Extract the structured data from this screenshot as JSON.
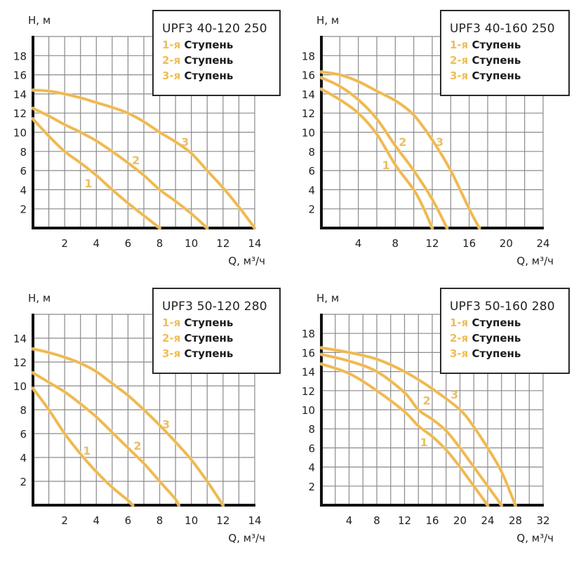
{
  "page": {
    "title": "UPF3 pump performance curves"
  },
  "style": {
    "curve_color": "#eeb64a",
    "curve_label_color": "#e9bf66",
    "grid_color": "#8a8a8a",
    "axis_color": "#111111",
    "legend_number_color": "#f0bd58"
  },
  "chart_data": [
    {
      "type": "line",
      "title": "UPF3 40-120 250",
      "xlabel": "Q, м³/ч",
      "ylabel": "H, м",
      "xlim": [
        0,
        14
      ],
      "ylim": [
        0,
        20
      ],
      "x_grid_step": 1,
      "y_grid_step": 2,
      "x_ticks": [
        2,
        4,
        6,
        8,
        10,
        12,
        14
      ],
      "y_ticks": [
        2,
        4,
        6,
        8,
        10,
        12,
        14,
        16,
        18
      ],
      "grid": true,
      "legend": {
        "position": "top-right",
        "entries": [
          {
            "num": "1-я",
            "label": "Ступень"
          },
          {
            "num": "2-я",
            "label": "Ступень"
          },
          {
            "num": "3-я",
            "label": "Ступень"
          }
        ]
      },
      "series": [
        {
          "name": "1",
          "label_at": [
            3.5,
            4.7
          ],
          "points": [
            [
              0,
              11.4
            ],
            [
              1,
              9.6
            ],
            [
              2,
              8.0
            ],
            [
              3,
              6.8
            ],
            [
              4,
              5.5
            ],
            [
              5,
              4.0
            ],
            [
              6,
              2.6
            ],
            [
              7,
              1.3
            ],
            [
              8,
              0
            ]
          ]
        },
        {
          "name": "2",
          "label_at": [
            6.5,
            7.1
          ],
          "points": [
            [
              0,
              12.5
            ],
            [
              1,
              11.7
            ],
            [
              2,
              10.8
            ],
            [
              3,
              10.0
            ],
            [
              4,
              9.1
            ],
            [
              5,
              8.0
            ],
            [
              6,
              6.8
            ],
            [
              7,
              5.5
            ],
            [
              8,
              4.0
            ],
            [
              9,
              2.8
            ],
            [
              10,
              1.5
            ],
            [
              11,
              0
            ]
          ]
        },
        {
          "name": "3",
          "label_at": [
            9.6,
            9.0
          ],
          "points": [
            [
              0,
              14.4
            ],
            [
              1,
              14.3
            ],
            [
              2,
              14.0
            ],
            [
              3,
              13.6
            ],
            [
              4,
              13.1
            ],
            [
              5,
              12.6
            ],
            [
              6,
              12.0
            ],
            [
              7,
              11.1
            ],
            [
              8,
              10.0
            ],
            [
              9,
              9.0
            ],
            [
              10,
              7.8
            ],
            [
              11,
              6.0
            ],
            [
              12,
              4.2
            ],
            [
              13,
              2.2
            ],
            [
              14,
              0
            ]
          ]
        }
      ]
    },
    {
      "type": "line",
      "title": "UPF3 40-160 250",
      "xlabel": "Q, м³/ч",
      "ylabel": "H, м",
      "xlim": [
        0,
        24
      ],
      "ylim": [
        0,
        20
      ],
      "x_grid_step": 2,
      "y_grid_step": 2,
      "x_ticks": [
        4,
        8,
        12,
        16,
        20,
        24
      ],
      "y_ticks": [
        2,
        4,
        6,
        8,
        10,
        12,
        14,
        16,
        18
      ],
      "grid": true,
      "legend": {
        "position": "top-right",
        "entries": [
          {
            "num": "1-я",
            "label": "Ступень"
          },
          {
            "num": "2-я",
            "label": "Ступень"
          },
          {
            "num": "3-я",
            "label": "Ступень"
          }
        ]
      },
      "series": [
        {
          "name": "1",
          "label_at": [
            7.0,
            6.6
          ],
          "points": [
            [
              0,
              14.5
            ],
            [
              2,
              13.4
            ],
            [
              4,
              12.0
            ],
            [
              6,
              9.8
            ],
            [
              8,
              6.6
            ],
            [
              10,
              4.0
            ],
            [
              11,
              2.2
            ],
            [
              12,
              0
            ]
          ]
        },
        {
          "name": "2",
          "label_at": [
            8.8,
            9.0
          ],
          "points": [
            [
              0,
              15.7
            ],
            [
              2,
              14.8
            ],
            [
              4,
              13.4
            ],
            [
              6,
              11.4
            ],
            [
              8,
              8.6
            ],
            [
              10,
              6.0
            ],
            [
              12,
              3.0
            ],
            [
              13.6,
              0
            ]
          ]
        },
        {
          "name": "3",
          "label_at": [
            12.8,
            9.0
          ],
          "points": [
            [
              0,
              16.3
            ],
            [
              2,
              16.0
            ],
            [
              4,
              15.3
            ],
            [
              6,
              14.3
            ],
            [
              8,
              13.3
            ],
            [
              10,
              11.8
            ],
            [
              12,
              9.2
            ],
            [
              14,
              6.0
            ],
            [
              16,
              2.0
            ],
            [
              17.1,
              0
            ]
          ]
        }
      ]
    },
    {
      "type": "line",
      "title": "UPF3 50-120 280",
      "xlabel": "Q, м³/ч",
      "ylabel": "H, м",
      "xlim": [
        0,
        14
      ],
      "ylim": [
        0,
        16
      ],
      "x_grid_step": 1,
      "y_grid_step": 2,
      "x_ticks": [
        2,
        4,
        6,
        8,
        10,
        12,
        14
      ],
      "y_ticks": [
        2,
        4,
        6,
        8,
        10,
        12,
        14
      ],
      "grid": true,
      "legend": {
        "position": "top-right",
        "entries": [
          {
            "num": "1-я",
            "label": "Ступень"
          },
          {
            "num": "2-я",
            "label": "Ступень"
          },
          {
            "num": "3-я",
            "label": "Ступень"
          }
        ]
      },
      "series": [
        {
          "name": "1",
          "label_at": [
            3.4,
            4.6
          ],
          "points": [
            [
              0,
              9.8
            ],
            [
              1,
              8.0
            ],
            [
              2,
              6.0
            ],
            [
              3,
              4.3
            ],
            [
              4,
              2.8
            ],
            [
              5,
              1.5
            ],
            [
              6,
              0.4
            ],
            [
              6.3,
              0
            ]
          ]
        },
        {
          "name": "2",
          "label_at": [
            6.6,
            5.0
          ],
          "points": [
            [
              0,
              11.1
            ],
            [
              1,
              10.3
            ],
            [
              2,
              9.5
            ],
            [
              3,
              8.5
            ],
            [
              4,
              7.4
            ],
            [
              5,
              6.1
            ],
            [
              6,
              4.8
            ],
            [
              7,
              3.5
            ],
            [
              8,
              2.0
            ],
            [
              9,
              0.5
            ],
            [
              9.2,
              0
            ]
          ]
        },
        {
          "name": "3",
          "label_at": [
            8.4,
            6.8
          ],
          "points": [
            [
              0,
              13.1
            ],
            [
              1,
              12.8
            ],
            [
              2,
              12.4
            ],
            [
              3,
              11.9
            ],
            [
              4,
              11.2
            ],
            [
              5,
              10.2
            ],
            [
              6,
              9.2
            ],
            [
              7,
              8.0
            ],
            [
              8,
              6.7
            ],
            [
              9,
              5.3
            ],
            [
              10,
              3.8
            ],
            [
              11,
              2.0
            ],
            [
              12,
              0
            ]
          ]
        }
      ]
    },
    {
      "type": "line",
      "title": "UPF3 50-160 280",
      "xlabel": "Q, м³/ч",
      "ylabel": "H, м",
      "xlim": [
        0,
        32
      ],
      "ylim": [
        0,
        20
      ],
      "x_grid_step": 2,
      "y_grid_step": 2,
      "x_ticks": [
        4,
        8,
        12,
        16,
        20,
        24,
        28,
        32
      ],
      "y_ticks": [
        2,
        4,
        6,
        8,
        10,
        12,
        14,
        16,
        18
      ],
      "grid": true,
      "legend": {
        "position": "top-right",
        "entries": [
          {
            "num": "1-я",
            "label": "Ступень"
          },
          {
            "num": "2-я",
            "label": "Ступень"
          },
          {
            "num": "3-я",
            "label": "Ступень"
          }
        ]
      },
      "series": [
        {
          "name": "1",
          "label_at": [
            14.8,
            6.6
          ],
          "points": [
            [
              0,
              14.8
            ],
            [
              4,
              13.8
            ],
            [
              8,
              12.0
            ],
            [
              12,
              9.8
            ],
            [
              14,
              8.3
            ],
            [
              16,
              7.2
            ],
            [
              18,
              5.8
            ],
            [
              20,
              4.0
            ],
            [
              22,
              2.0
            ],
            [
              24,
              0
            ]
          ]
        },
        {
          "name": "2",
          "label_at": [
            15.2,
            11.0
          ],
          "points": [
            [
              0,
              15.8
            ],
            [
              4,
              15.1
            ],
            [
              8,
              14.0
            ],
            [
              12,
              11.8
            ],
            [
              14,
              10.0
            ],
            [
              16,
              9.0
            ],
            [
              18,
              7.8
            ],
            [
              20,
              6.0
            ],
            [
              22,
              4.0
            ],
            [
              24,
              2.0
            ],
            [
              26,
              0
            ]
          ]
        },
        {
          "name": "3",
          "label_at": [
            19.2,
            11.6
          ],
          "points": [
            [
              0,
              16.5
            ],
            [
              4,
              16.0
            ],
            [
              8,
              15.3
            ],
            [
              12,
              14.0
            ],
            [
              16,
              12.2
            ],
            [
              20,
              10.0
            ],
            [
              22,
              8.2
            ],
            [
              24,
              6.0
            ],
            [
              26,
              3.5
            ],
            [
              28,
              0
            ]
          ]
        }
      ]
    }
  ]
}
